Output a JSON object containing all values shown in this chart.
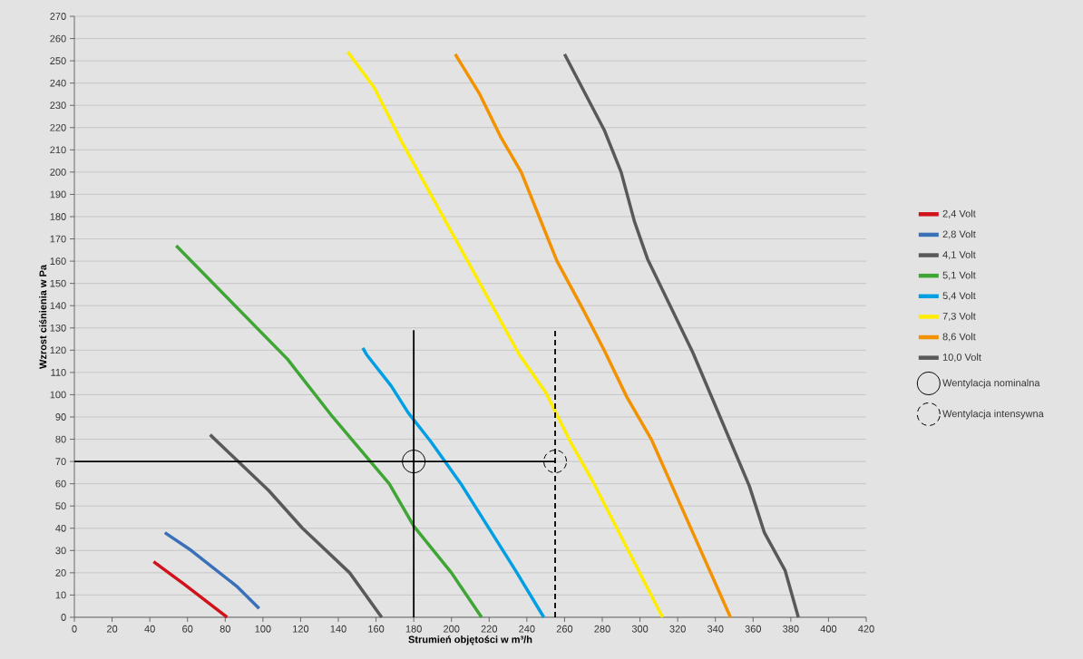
{
  "chart_data": {
    "type": "line",
    "xlabel": "Strumień objętości w m³/h",
    "ylabel": "Wzrost ciśnienia w Pa",
    "xlim": [
      0,
      420
    ],
    "ylim": [
      0,
      270
    ],
    "xticks": [
      0,
      20,
      40,
      60,
      80,
      100,
      120,
      140,
      160,
      180,
      200,
      220,
      240,
      260,
      280,
      300,
      320,
      340,
      360,
      380,
      400,
      420
    ],
    "yticks": [
      0,
      10,
      20,
      30,
      40,
      50,
      60,
      70,
      80,
      90,
      100,
      110,
      120,
      130,
      140,
      150,
      160,
      170,
      180,
      190,
      200,
      210,
      220,
      230,
      240,
      250,
      260,
      270
    ],
    "grid": "y",
    "legend": "right",
    "marker": "none",
    "line_style": "solid",
    "series": [
      {
        "name": "2,4 Volt",
        "color": "#d0121b",
        "x": [
          42,
          58,
          81
        ],
        "values": [
          25,
          15,
          0
        ]
      },
      {
        "name": "2,8 Volt",
        "color": "#3a70b8",
        "x": [
          48,
          62,
          86,
          98
        ],
        "values": [
          38,
          30,
          14,
          4
        ]
      },
      {
        "name": "4,1 Volt",
        "color": "#595959",
        "x": [
          72,
          103,
          121,
          146,
          163
        ],
        "values": [
          82,
          57,
          40,
          20,
          0
        ]
      },
      {
        "name": "5,1 Volt",
        "color": "#3fa535",
        "x": [
          54,
          113,
          137,
          167,
          180,
          200,
          216
        ],
        "values": [
          167,
          116,
          90,
          60,
          41,
          20,
          0
        ]
      },
      {
        "name": "5,4 Volt",
        "color": "#009fe3",
        "x": [
          153,
          155,
          168,
          177,
          189,
          205,
          234,
          249
        ],
        "values": [
          121,
          118,
          104,
          92,
          79,
          60,
          21,
          0
        ]
      },
      {
        "name": "7,3 Volt",
        "color": "#ffed00",
        "x": [
          145,
          159,
          174,
          236,
          250,
          263,
          275,
          312
        ],
        "values": [
          254,
          238,
          213,
          118,
          101,
          79,
          61,
          0
        ]
      },
      {
        "name": "8,6 Volt",
        "color": "#f39200",
        "x": [
          202,
          215,
          226,
          237,
          256,
          270,
          281,
          293,
          306,
          348
        ],
        "values": [
          253,
          235,
          216,
          200,
          160,
          138,
          120,
          99,
          80,
          0
        ]
      },
      {
        "name": "10,0 Volt",
        "color": "#595959",
        "x": [
          260,
          281,
          290,
          297,
          304,
          328,
          358,
          366,
          377,
          384
        ],
        "values": [
          253,
          219,
          200,
          178,
          161,
          119,
          59,
          38,
          21,
          0
        ]
      },
      {
        "color": "#000000",
        "x": [
          0,
          255
        ],
        "values": [
          70,
          70
        ]
      },
      {
        "color": "#000000",
        "x": [
          180,
          180
        ],
        "values": [
          0,
          129
        ]
      },
      {
        "color": "#000000",
        "x": [
          255,
          255
        ],
        "values": [
          0,
          129
        ],
        "line_style": "dashed"
      },
      {
        "name": "Wentylacja nominalna",
        "type": "scatter",
        "marker": "circle",
        "color": "#000000",
        "x": [
          180
        ],
        "values": [
          70
        ]
      },
      {
        "name": "Wentylacja intensywna",
        "type": "scatter",
        "marker": "circle",
        "line_style": "dashed",
        "color": "#000000",
        "x": [
          255
        ],
        "values": [
          70
        ]
      }
    ]
  }
}
